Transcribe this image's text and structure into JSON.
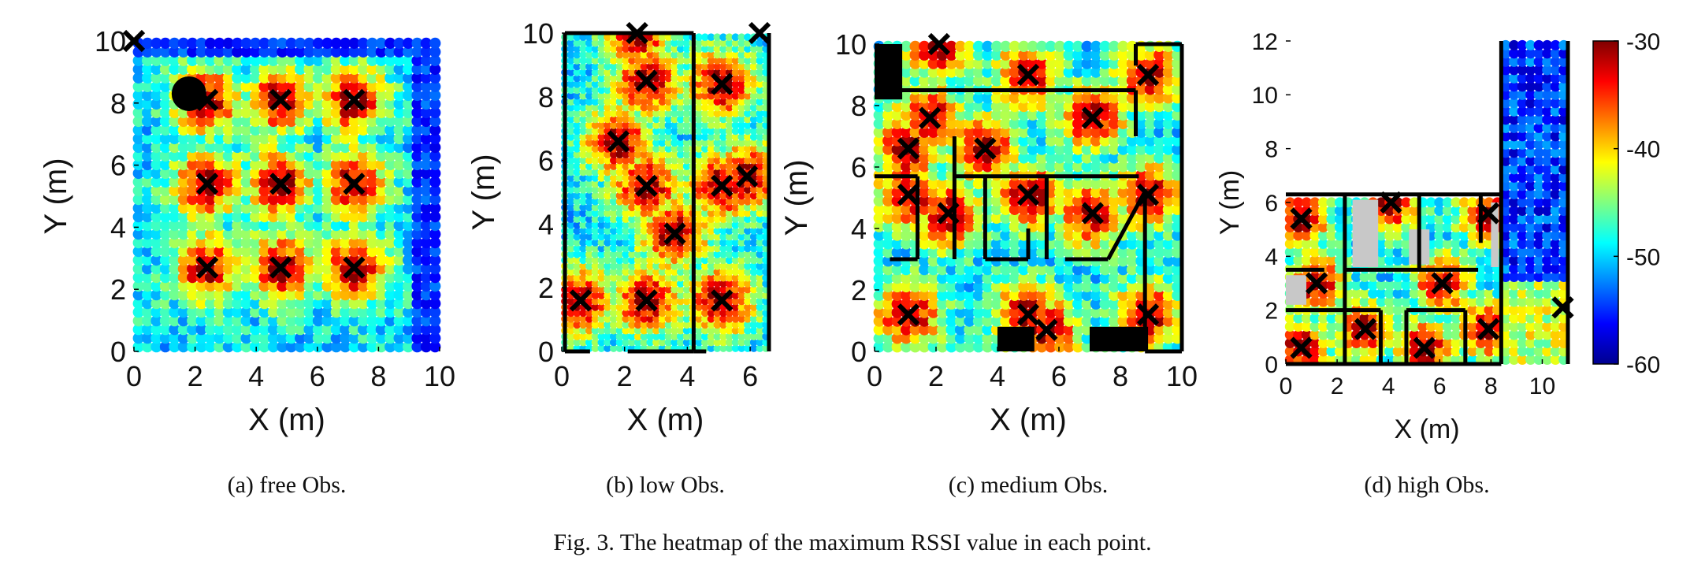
{
  "figure": {
    "caption": "Fig. 3.  The heatmap of the maximum RSSI value in each point."
  },
  "colorbar": {
    "ticks": [
      "-30",
      "-40",
      "-50",
      "-60"
    ],
    "min": -60,
    "max": -30,
    "colors": [
      "#00008f",
      "#0000ff",
      "#0080ff",
      "#00ffff",
      "#80ff80",
      "#ffff00",
      "#ff8000",
      "#ff0000",
      "#800000"
    ]
  },
  "chart_data": [
    {
      "type": "heatmap",
      "subtitle": "(a)  free Obs.",
      "xlabel": "X (m)",
      "ylabel": "Y (m)",
      "xlim": [
        0,
        10
      ],
      "ylim": [
        0,
        10
      ],
      "xticks": [
        "0",
        "2",
        "4",
        "6",
        "8",
        "10"
      ],
      "yticks": [
        "0",
        "2",
        "4",
        "6",
        "8",
        "10"
      ],
      "anchors_x": [
        {
          "x": 0,
          "y": 10
        },
        {
          "x": 2.4,
          "y": 8.1
        },
        {
          "x": 4.8,
          "y": 8.1
        },
        {
          "x": 7.2,
          "y": 8.1
        },
        {
          "x": 2.4,
          "y": 5.4
        },
        {
          "x": 4.8,
          "y": 5.4
        },
        {
          "x": 7.2,
          "y": 5.4
        },
        {
          "x": 2.4,
          "y": 2.7
        },
        {
          "x": 4.8,
          "y": 2.7
        },
        {
          "x": 7.2,
          "y": 2.7
        }
      ],
      "hotspots": [
        {
          "x": 2.4,
          "y": 8.1
        },
        {
          "x": 4.8,
          "y": 8.1
        },
        {
          "x": 7.2,
          "y": 8.1
        },
        {
          "x": 2.4,
          "y": 5.4
        },
        {
          "x": 4.8,
          "y": 5.4
        },
        {
          "x": 7.2,
          "y": 5.4
        },
        {
          "x": 2.4,
          "y": 2.7
        },
        {
          "x": 4.8,
          "y": 2.7
        },
        {
          "x": 7.2,
          "y": 2.7
        }
      ],
      "extra_markers": [
        {
          "type": "disc",
          "x": 1.8,
          "y": 8.3
        }
      ],
      "walls": [],
      "obstacles": [],
      "gray_regions": []
    },
    {
      "type": "heatmap",
      "subtitle": "(b)  low Obs.",
      "xlabel": "X (m)",
      "ylabel": "Y (m)",
      "xlim": [
        0,
        6.6
      ],
      "ylim": [
        0,
        10
      ],
      "xticks": [
        "0",
        "2",
        "4",
        "6"
      ],
      "yticks": [
        "0",
        "2",
        "4",
        "6",
        "8",
        "10"
      ],
      "anchors_x": [
        {
          "x": 2.4,
          "y": 10
        },
        {
          "x": 6.3,
          "y": 10
        },
        {
          "x": 2.7,
          "y": 8.5
        },
        {
          "x": 5.1,
          "y": 8.4
        },
        {
          "x": 1.8,
          "y": 6.6
        },
        {
          "x": 2.7,
          "y": 5.2
        },
        {
          "x": 5.1,
          "y": 5.2
        },
        {
          "x": 5.9,
          "y": 5.5
        },
        {
          "x": 3.6,
          "y": 3.7
        },
        {
          "x": 0.6,
          "y": 1.6
        },
        {
          "x": 2.7,
          "y": 1.6
        },
        {
          "x": 5.1,
          "y": 1.6
        }
      ],
      "hotspots": [
        {
          "x": 2.4,
          "y": 10
        },
        {
          "x": 2.7,
          "y": 8.5
        },
        {
          "x": 5.1,
          "y": 8.4
        },
        {
          "x": 1.8,
          "y": 6.6
        },
        {
          "x": 2.7,
          "y": 5.2
        },
        {
          "x": 5.1,
          "y": 5.2
        },
        {
          "x": 5.9,
          "y": 5.5
        },
        {
          "x": 3.6,
          "y": 3.7
        },
        {
          "x": 0.6,
          "y": 1.6
        },
        {
          "x": 2.7,
          "y": 1.6
        },
        {
          "x": 5.1,
          "y": 1.6
        }
      ],
      "extra_markers": [],
      "walls": [
        [
          [
            0.1,
            0
          ],
          [
            0.1,
            10
          ]
        ],
        [
          [
            0.1,
            10
          ],
          [
            4.2,
            10
          ]
        ],
        [
          [
            4.2,
            10
          ],
          [
            4.2,
            0
          ]
        ],
        [
          [
            4.2,
            0
          ],
          [
            2.1,
            0
          ]
        ],
        [
          [
            0.1,
            0
          ],
          [
            0.9,
            0
          ]
        ],
        [
          [
            6.6,
            10
          ],
          [
            6.6,
            0
          ]
        ],
        [
          [
            4.2,
            0
          ],
          [
            4.6,
            0
          ]
        ]
      ],
      "obstacles": [],
      "gray_regions": []
    },
    {
      "type": "heatmap",
      "subtitle": "(c)  medium Obs.",
      "xlabel": "X (m)",
      "ylabel": "Y (m)",
      "xlim": [
        0,
        10
      ],
      "ylim": [
        0,
        10
      ],
      "xticks": [
        "0",
        "2",
        "4",
        "6",
        "8",
        "10"
      ],
      "yticks": [
        "0",
        "2",
        "4",
        "6",
        "8",
        "10"
      ],
      "anchors_x": [
        {
          "x": 2.1,
          "y": 10
        },
        {
          "x": 5,
          "y": 9
        },
        {
          "x": 8.9,
          "y": 9
        },
        {
          "x": 1.8,
          "y": 7.6
        },
        {
          "x": 7.1,
          "y": 7.6
        },
        {
          "x": 1.1,
          "y": 6.6
        },
        {
          "x": 3.6,
          "y": 6.6
        },
        {
          "x": 1.1,
          "y": 5.1
        },
        {
          "x": 5,
          "y": 5.1
        },
        {
          "x": 8.9,
          "y": 5.1
        },
        {
          "x": 2.4,
          "y": 4.5
        },
        {
          "x": 7.1,
          "y": 4.5
        },
        {
          "x": 1.1,
          "y": 1.2
        },
        {
          "x": 5,
          "y": 1.2
        },
        {
          "x": 5.6,
          "y": 0.7
        },
        {
          "x": 8.9,
          "y": 1.2
        }
      ],
      "hotspots": [
        {
          "x": 2.1,
          "y": 10
        },
        {
          "x": 5,
          "y": 9
        },
        {
          "x": 8.9,
          "y": 9
        },
        {
          "x": 1.8,
          "y": 7.6
        },
        {
          "x": 7.1,
          "y": 7.6
        },
        {
          "x": 1.1,
          "y": 6.6
        },
        {
          "x": 3.6,
          "y": 6.6
        },
        {
          "x": 1.1,
          "y": 5.1
        },
        {
          "x": 5,
          "y": 5.1
        },
        {
          "x": 8.9,
          "y": 5.1
        },
        {
          "x": 2.4,
          "y": 4.5
        },
        {
          "x": 7.1,
          "y": 4.5
        },
        {
          "x": 1.1,
          "y": 1.2
        },
        {
          "x": 5,
          "y": 1.2
        },
        {
          "x": 5.6,
          "y": 0.7
        },
        {
          "x": 8.9,
          "y": 1.2
        }
      ],
      "extra_markers": [],
      "walls": [
        [
          [
            0.8,
            8.5
          ],
          [
            8.5,
            8.5
          ]
        ],
        [
          [
            8.5,
            8.5
          ],
          [
            8.5,
            7
          ]
        ],
        [
          [
            8.5,
            10
          ],
          [
            10,
            10
          ]
        ],
        [
          [
            10,
            10
          ],
          [
            10,
            0
          ]
        ],
        [
          [
            8.5,
            10
          ],
          [
            8.5,
            9.3
          ]
        ],
        [
          [
            0,
            5.7
          ],
          [
            1.4,
            5.7
          ]
        ],
        [
          [
            1.4,
            5.7
          ],
          [
            1.4,
            3
          ]
        ],
        [
          [
            1.4,
            3
          ],
          [
            0.5,
            3
          ]
        ],
        [
          [
            2.6,
            7
          ],
          [
            2.6,
            3
          ]
        ],
        [
          [
            2.6,
            5.7
          ],
          [
            8.6,
            5.7
          ]
        ],
        [
          [
            3.6,
            5.7
          ],
          [
            3.6,
            3
          ]
        ],
        [
          [
            5,
            4
          ],
          [
            5,
            3
          ]
        ],
        [
          [
            3.6,
            3
          ],
          [
            5,
            3
          ]
        ],
        [
          [
            5.6,
            5.7
          ],
          [
            5.6,
            3
          ]
        ],
        [
          [
            6.2,
            3
          ],
          [
            7.6,
            3
          ]
        ],
        [
          [
            7.6,
            3
          ],
          [
            8.8,
            5.2
          ]
        ],
        [
          [
            8.8,
            5.2
          ],
          [
            8.8,
            0
          ]
        ],
        [
          [
            8.8,
            0
          ],
          [
            10,
            0
          ]
        ]
      ],
      "obstacles": [
        {
          "x0": 0,
          "y0": 8.2,
          "x1": 0.9,
          "y1": 10
        },
        {
          "x0": 4,
          "y0": 0,
          "x1": 5.2,
          "y1": 0.8
        },
        {
          "x0": 7,
          "y0": 0,
          "x1": 8.9,
          "y1": 0.8
        }
      ],
      "gray_regions": []
    },
    {
      "type": "heatmap",
      "subtitle": "(d)  high Obs.",
      "xlabel": "X (m)",
      "ylabel": "Y (m)",
      "xlim": [
        0,
        11
      ],
      "ylim": [
        0,
        12
      ],
      "xticks": [
        "0",
        "2",
        "4",
        "6",
        "8",
        "10"
      ],
      "yticks": [
        "0",
        "2",
        "4",
        "6",
        "8",
        "10",
        "12"
      ],
      "anchors_x": [
        {
          "x": 0.6,
          "y": 5.4
        },
        {
          "x": 4.1,
          "y": 6
        },
        {
          "x": 7.9,
          "y": 5.6
        },
        {
          "x": 1.2,
          "y": 3
        },
        {
          "x": 6.1,
          "y": 3
        },
        {
          "x": 3.1,
          "y": 1.3
        },
        {
          "x": 5.4,
          "y": 0.6
        },
        {
          "x": 7.9,
          "y": 1.3
        },
        {
          "x": 0.6,
          "y": 0.6
        },
        {
          "x": 10.8,
          "y": 2.1
        }
      ],
      "hotspots": [
        {
          "x": 0.6,
          "y": 5.4
        },
        {
          "x": 4.1,
          "y": 6
        },
        {
          "x": 7.9,
          "y": 5.6
        },
        {
          "x": 1.2,
          "y": 3
        },
        {
          "x": 6.1,
          "y": 3
        },
        {
          "x": 3.1,
          "y": 1.3
        },
        {
          "x": 5.4,
          "y": 0.6
        },
        {
          "x": 7.9,
          "y": 1.3
        },
        {
          "x": 0.6,
          "y": 0.6
        },
        {
          "x": 10.8,
          "y": 2.1
        }
      ],
      "extra_markers": [],
      "walls": [
        [
          [
            0,
            6.3
          ],
          [
            8.4,
            6.3
          ]
        ],
        [
          [
            8.4,
            12
          ],
          [
            8.4,
            0
          ]
        ],
        [
          [
            0,
            0
          ],
          [
            8.4,
            0
          ]
        ],
        [
          [
            0,
            3.5
          ],
          [
            1.5,
            3.5
          ]
        ],
        [
          [
            0,
            2
          ],
          [
            2.3,
            2
          ]
        ],
        [
          [
            2.3,
            6.3
          ],
          [
            2.3,
            0
          ]
        ],
        [
          [
            2.3,
            3.5
          ],
          [
            7.5,
            3.5
          ]
        ],
        [
          [
            2.3,
            2
          ],
          [
            3.7,
            2
          ]
        ],
        [
          [
            3.7,
            2
          ],
          [
            3.7,
            0
          ]
        ],
        [
          [
            4.7,
            2
          ],
          [
            7,
            2
          ]
        ],
        [
          [
            4.7,
            2
          ],
          [
            4.7,
            0
          ]
        ],
        [
          [
            7,
            2
          ],
          [
            7,
            0
          ]
        ],
        [
          [
            5.2,
            6.3
          ],
          [
            5.2,
            3.5
          ]
        ],
        [
          [
            7.6,
            4.5
          ],
          [
            7.6,
            6.3
          ]
        ],
        [
          [
            11,
            12
          ],
          [
            11,
            0
          ]
        ]
      ],
      "obstacles": [],
      "gray_regions": [
        {
          "x0": 0,
          "y0": 2.2,
          "x1": 0.8,
          "y1": 3.3
        },
        {
          "x0": 2.6,
          "y0": 3.6,
          "x1": 3.6,
          "y1": 6.1
        },
        {
          "x0": 4.8,
          "y0": 3.7,
          "x1": 5.6,
          "y1": 5
        },
        {
          "x0": 8,
          "y0": 3.6,
          "x1": 8.3,
          "y1": 6
        }
      ],
      "blank_region": {
        "x0": 0,
        "y0": 6.3,
        "x1": 8.4,
        "y1": 12
      },
      "cold_region": {
        "x0": 8.5,
        "y0": 0,
        "x1": 11,
        "y1": 12
      }
    }
  ]
}
